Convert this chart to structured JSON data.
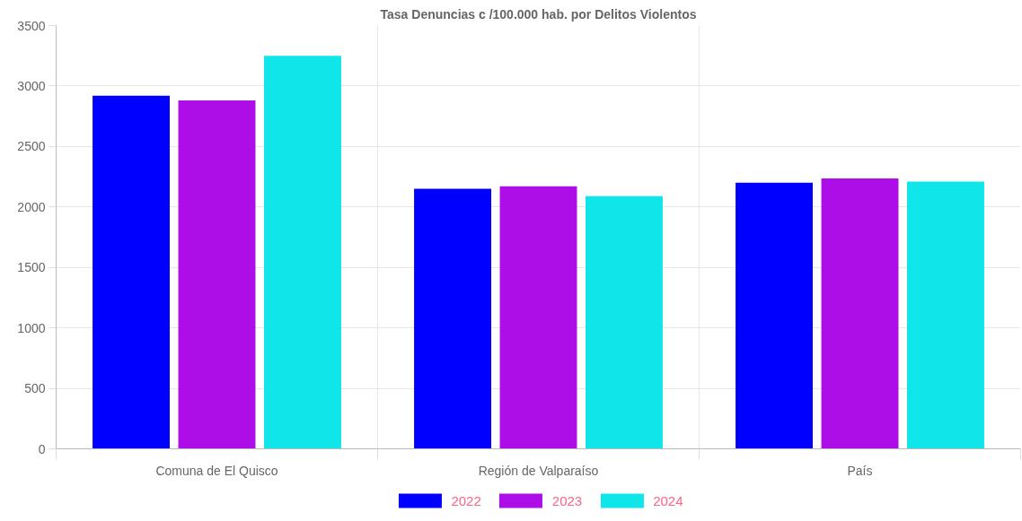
{
  "chart_data": {
    "type": "bar",
    "title": "Tasa Denuncias c /100.000 hab. por Delitos Violentos",
    "categories": [
      "Comuna de El Quisco",
      "Región de Valparaíso",
      "País"
    ],
    "series": [
      {
        "name": "2022",
        "color": "#0000ff",
        "values": [
          2920,
          2150,
          2200
        ]
      },
      {
        "name": "2023",
        "color": "#ad0ee8",
        "values": [
          2880,
          2170,
          2235
        ]
      },
      {
        "name": "2024",
        "color": "#10e6ea",
        "values": [
          3250,
          2090,
          2210
        ]
      }
    ],
    "ylim": [
      0,
      3500
    ],
    "yticks": [
      0,
      500,
      1000,
      1500,
      2000,
      2500,
      3000,
      3500
    ],
    "grid": true,
    "legend": "bottom"
  }
}
